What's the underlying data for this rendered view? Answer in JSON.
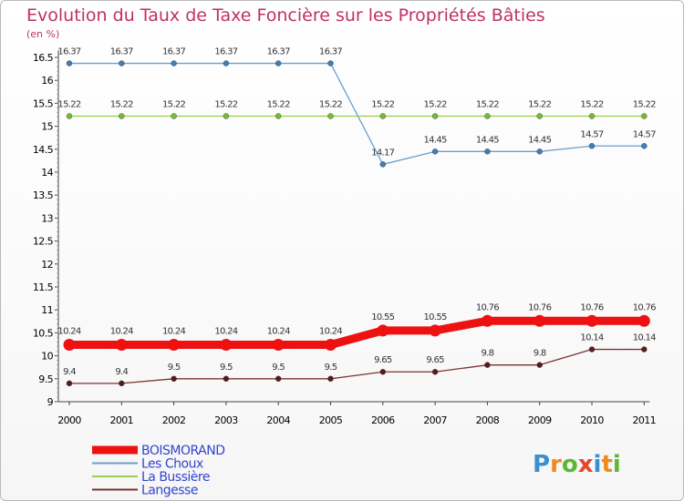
{
  "chart_data": {
    "type": "line",
    "title": "Evolution du Taux de Taxe Foncière sur les Propriétés Bâties",
    "unit_label": "(en %)",
    "xlabel": "",
    "ylabel": "(en %)",
    "ylim": [
      9,
      16.5
    ],
    "yticks": [
      "16.5",
      "16",
      "15.5",
      "15",
      "14.5",
      "14",
      "13.5",
      "13",
      "12.5",
      "12",
      "11.5",
      "11",
      "10.5",
      "10",
      "9.5",
      "9"
    ],
    "categories": [
      "2000",
      "2001",
      "2002",
      "2003",
      "2004",
      "2005",
      "2006",
      "2007",
      "2008",
      "2009",
      "2010",
      "2011"
    ],
    "series": [
      {
        "name": "BOISMORAND",
        "color": "#ee1111",
        "values": [
          10.24,
          10.24,
          10.24,
          10.24,
          10.24,
          10.24,
          10.55,
          10.55,
          10.76,
          10.76,
          10.76,
          10.76
        ],
        "labels": [
          "10.24",
          "10.24",
          "10.24",
          "10.24",
          "10.24",
          "10.24",
          "10.55",
          "10.55",
          "10.76",
          "10.76",
          "10.76",
          "10.76"
        ]
      },
      {
        "name": "Les Choux",
        "color": "#6b9fcc",
        "marker": "#3c7fbd",
        "values": [
          16.37,
          16.37,
          16.37,
          16.37,
          16.37,
          16.37,
          14.17,
          14.45,
          14.45,
          14.45,
          14.57,
          14.57
        ],
        "labels": [
          "16.37",
          "16.37",
          "16.37",
          "16.37",
          "16.37",
          "16.37",
          "14.17",
          "14.45",
          "14.45",
          "14.45",
          "14.57",
          "14.57"
        ]
      },
      {
        "name": "La Bussière",
        "color": "#99cc55",
        "marker": "#77bb33",
        "values": [
          15.22,
          15.22,
          15.22,
          15.22,
          15.22,
          15.22,
          15.22,
          15.22,
          15.22,
          15.22,
          15.22,
          15.22
        ],
        "labels": [
          "15.22",
          "15.22",
          "15.22",
          "15.22",
          "15.22",
          "15.22",
          "15.22",
          "15.22",
          "15.22",
          "15.22",
          "15.22",
          "15.22"
        ]
      },
      {
        "name": "Langesse",
        "color": "#7a3333",
        "marker": "#5a1a1a",
        "values": [
          9.4,
          9.4,
          9.5,
          9.5,
          9.5,
          9.5,
          9.65,
          9.65,
          9.8,
          9.8,
          10.14,
          10.14
        ],
        "labels": [
          "9.4",
          "9.4",
          "9.5",
          "9.5",
          "9.5",
          "9.5",
          "9.65",
          "9.65",
          "9.8",
          "9.8",
          "10.14",
          "10.14"
        ]
      }
    ],
    "legend": [
      "BOISMORAND",
      "Les Choux",
      "La Bussière",
      "Langesse"
    ],
    "legend_position": "bottom-left"
  },
  "branding": {
    "logo_letters": [
      "P",
      "r",
      "o",
      "x",
      "i",
      "t",
      "i"
    ],
    "logo_colors": [
      "#3a8fd0",
      "#f08a1c",
      "#5cb832",
      "#e8452c",
      "#3a8fd0",
      "#f08a1c",
      "#5cb832"
    ]
  }
}
